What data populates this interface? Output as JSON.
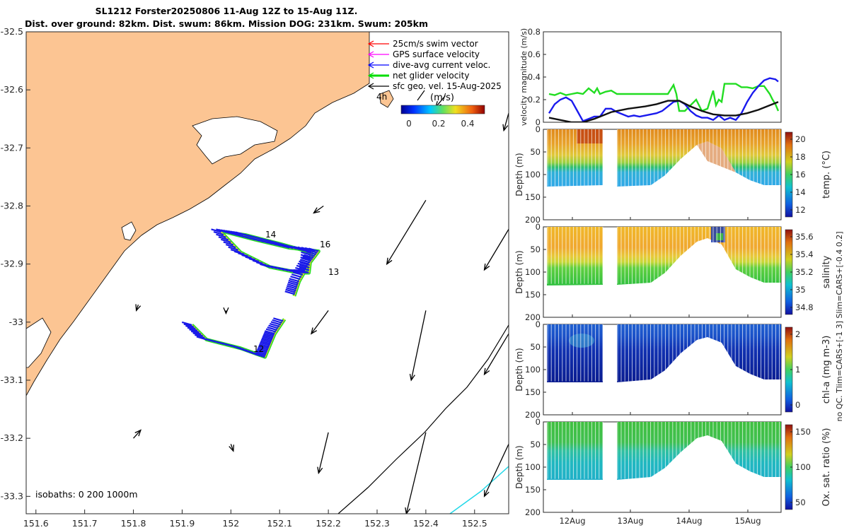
{
  "title_line1": "SL1212 Forster20250806 11-Aug 12Z to 15-Aug 11Z.",
  "title_line2": "Dist. over ground: 82km. Dist. swum: 86km. Mission DOG: 231km. Swum: 205km",
  "map": {
    "lon_ticks": [
      "151.6",
      "151.7",
      "151.8",
      "151.9",
      "152",
      "152.1",
      "152.2",
      "152.3",
      "152.4",
      "152.5"
    ],
    "lat_ticks": [
      "-32.5",
      "-32.6",
      "-32.7",
      "-32.8",
      "-32.9",
      "-33",
      "-33.1",
      "-33.2",
      "-33.3"
    ],
    "legend": [
      {
        "label": "25cm/s swim vector",
        "color": "#ff0000"
      },
      {
        "label": "GPS surface velocity",
        "color": "#ff00ff"
      },
      {
        "label": "dive-avg current veloc.",
        "color": "#0000ff"
      },
      {
        "label": "net glider velocity",
        "color": "#00dd00"
      },
      {
        "label": "sfc geo. vel. 15-Aug-2025",
        "color": "#000000"
      }
    ],
    "scale_label": "4h",
    "colorbar_unit": "(m/s)",
    "colorbar_ticks": [
      "0",
      "0.2",
      "0.4"
    ],
    "day_labels": [
      "14",
      "16",
      "13",
      "12"
    ],
    "isobaths_label": "isobaths: 0   200  1000m",
    "land_color": "#fcc593",
    "chart_data": {
      "type": "map",
      "xlim": [
        151.58,
        152.57
      ],
      "ylim": [
        -33.33,
        -32.5
      ],
      "current_vectors": [
        {
          "lon": 152.44,
          "lat": -32.61,
          "dlon": -0.02,
          "dlat": -0.02
        },
        {
          "lon": 152.57,
          "lat": -32.64,
          "dlon": -0.01,
          "dlat": -0.03
        },
        {
          "lon": 152.19,
          "lat": -32.8,
          "dlon": -0.02,
          "dlat": -0.012
        },
        {
          "lon": 152.4,
          "lat": -32.79,
          "dlon": -0.08,
          "dlat": -0.11
        },
        {
          "lon": 152.57,
          "lat": -32.84,
          "dlon": -0.05,
          "dlat": -0.07
        },
        {
          "lon": 152.2,
          "lat": -32.98,
          "dlon": -0.035,
          "dlat": -0.04
        },
        {
          "lon": 152.4,
          "lat": -32.98,
          "dlon": -0.03,
          "dlat": -0.12
        },
        {
          "lon": 152.57,
          "lat": -33.02,
          "dlon": -0.05,
          "dlat": -0.07
        },
        {
          "lon": 151.81,
          "lat": -32.97,
          "dlon": -0.004,
          "dlat": -0.01
        },
        {
          "lon": 151.99,
          "lat": -32.98,
          "dlon": 0.0,
          "dlat": -0.005
        },
        {
          "lon": 151.8,
          "lat": -33.2,
          "dlon": 0.015,
          "dlat": 0.014
        },
        {
          "lon": 152.0,
          "lat": -33.21,
          "dlon": 0.005,
          "dlat": -0.012
        },
        {
          "lon": 152.2,
          "lat": -33.19,
          "dlon": -0.02,
          "dlat": -0.07
        },
        {
          "lon": 152.4,
          "lat": -33.19,
          "dlon": -0.04,
          "dlat": -0.14
        },
        {
          "lon": 152.57,
          "lat": -33.21,
          "dlon": -0.05,
          "dlat": -0.09
        }
      ],
      "track_north": [
        [
          151.98,
          -32.845
        ],
        [
          152.02,
          -32.88
        ],
        [
          152.08,
          -32.905
        ],
        [
          152.14,
          -32.915
        ],
        [
          152.16,
          -32.915
        ],
        [
          152.165,
          -32.88
        ],
        [
          152.1,
          -32.865
        ],
        [
          152.03,
          -32.85
        ],
        [
          151.99,
          -32.845
        ],
        [
          152.05,
          -32.858
        ],
        [
          152.12,
          -32.872
        ],
        [
          152.18,
          -32.878
        ],
        [
          152.16,
          -32.9
        ],
        [
          152.14,
          -32.93
        ],
        [
          152.13,
          -32.955
        ]
      ],
      "track_south": [
        [
          151.92,
          -33.005
        ],
        [
          151.95,
          -33.03
        ],
        [
          152.02,
          -33.045
        ],
        [
          152.07,
          -33.06
        ],
        [
          152.08,
          -33.04
        ],
        [
          152.09,
          -33.02
        ],
        [
          152.11,
          -32.995
        ]
      ]
    }
  },
  "velocity_panel": {
    "ylabel": "velocity magnitude (m/s)",
    "yticks": [
      "0",
      "0.2",
      "0.4",
      "0.6",
      "0.8"
    ],
    "chart_data": {
      "type": "line",
      "xlim": [
        11.4,
        15.6
      ],
      "ylim": [
        0,
        0.8
      ],
      "series": [
        {
          "name": "net glider velocity",
          "color": "#22dd22",
          "x": [
            11.5,
            11.6,
            11.7,
            11.8,
            11.9,
            12.0,
            12.1,
            12.2,
            12.3,
            12.35,
            12.4,
            12.5,
            12.6,
            12.7,
            12.8,
            12.9,
            13.0,
            13.2,
            13.4,
            13.6,
            13.7,
            13.75,
            13.8,
            13.9,
            14.0,
            14.1,
            14.2,
            14.3,
            14.4,
            14.45,
            14.5,
            14.55,
            14.6,
            14.7,
            14.8,
            14.9,
            15.0,
            15.1,
            15.2,
            15.3,
            15.4,
            15.45,
            15.5,
            15.55
          ],
          "y": [
            0.25,
            0.24,
            0.26,
            0.24,
            0.25,
            0.26,
            0.25,
            0.3,
            0.26,
            0.3,
            0.25,
            0.27,
            0.28,
            0.25,
            0.25,
            0.25,
            0.25,
            0.25,
            0.25,
            0.25,
            0.33,
            0.25,
            0.1,
            0.1,
            0.15,
            0.2,
            0.1,
            0.12,
            0.28,
            0.15,
            0.2,
            0.18,
            0.34,
            0.34,
            0.34,
            0.31,
            0.31,
            0.3,
            0.32,
            0.32,
            0.25,
            0.2,
            0.16,
            0.1
          ]
        },
        {
          "name": "dive-avg current",
          "color": "#1a1aee",
          "x": [
            11.5,
            11.6,
            11.7,
            11.8,
            11.9,
            12.0,
            12.1,
            12.2,
            12.3,
            12.4,
            12.5,
            12.6,
            12.7,
            12.8,
            12.9,
            13.0,
            13.1,
            13.2,
            13.3,
            13.4,
            13.5,
            13.6,
            13.7,
            13.8,
            13.9,
            14.0,
            14.1,
            14.2,
            14.3,
            14.4,
            14.5,
            14.6,
            14.7,
            14.8,
            14.9,
            15.0,
            15.1,
            15.2,
            15.3,
            15.4,
            15.5,
            15.55
          ],
          "y": [
            0.08,
            0.16,
            0.2,
            0.22,
            0.19,
            0.1,
            0.01,
            0.03,
            0.05,
            0.05,
            0.12,
            0.12,
            0.09,
            0.07,
            0.05,
            0.06,
            0.05,
            0.06,
            0.07,
            0.08,
            0.1,
            0.14,
            0.18,
            0.19,
            0.16,
            0.1,
            0.06,
            0.04,
            0.04,
            0.02,
            0.06,
            0.02,
            0.04,
            0.02,
            0.08,
            0.18,
            0.26,
            0.32,
            0.37,
            0.39,
            0.38,
            0.36
          ]
        },
        {
          "name": "surface geo. velocity",
          "color": "#111111",
          "x": [
            11.5,
            11.7,
            11.9,
            12.1,
            12.3,
            12.6,
            12.9,
            13.2,
            13.4,
            13.6,
            13.8,
            14.0,
            14.2,
            14.4,
            14.6,
            14.8,
            15.0,
            15.2,
            15.4,
            15.55
          ],
          "y": [
            0.04,
            0.02,
            0.0,
            0.0,
            0.03,
            0.09,
            0.12,
            0.14,
            0.16,
            0.19,
            0.19,
            0.14,
            0.1,
            0.07,
            0.06,
            0.06,
            0.08,
            0.11,
            0.15,
            0.18
          ]
        }
      ]
    }
  },
  "sections": [
    {
      "cbar_label": "temp. (°C)",
      "cbar_ticks": [
        "20",
        "18",
        "16",
        "14",
        "12"
      ],
      "ylabel": "Depth (m)",
      "yticks": [
        "0",
        "50",
        "100",
        "150",
        "200"
      ]
    },
    {
      "cbar_label": "salinity",
      "cbar_ticks": [
        "35.6",
        "35.4",
        "35.2",
        "35",
        "34.8"
      ],
      "ylabel": "Depth (m)",
      "yticks": [
        "0",
        "50",
        "100",
        "150",
        "200"
      ]
    },
    {
      "cbar_label": "chl-a (mg m-3)",
      "cbar_ticks": [
        "2",
        "1",
        "0"
      ],
      "ylabel": "Depth (m)",
      "yticks": [
        "0",
        "50",
        "100",
        "150",
        "200"
      ]
    },
    {
      "cbar_label": "Ox. sat. ratio (%)",
      "cbar_ticks": [
        "150",
        "100",
        "50"
      ],
      "ylabel": "Depth (m)",
      "yticks": [
        "0",
        "50",
        "100",
        "150",
        "200"
      ]
    }
  ],
  "time_ticks": [
    "12Aug",
    "13Aug",
    "14Aug",
    "15Aug"
  ],
  "qc_note": "no QC. Tlim=CARS+[-1 3] Slim=CARS+[-0.4 0.2]"
}
